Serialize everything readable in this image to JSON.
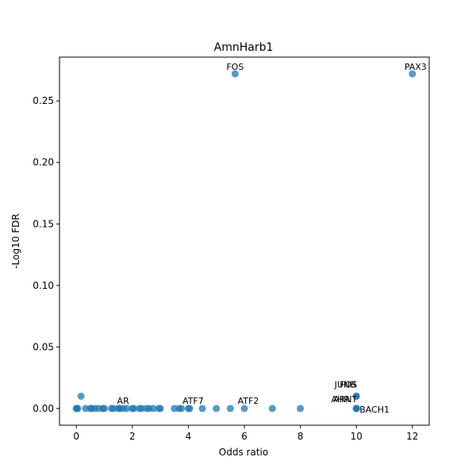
{
  "chart_data": {
    "type": "scatter",
    "title": "AmnHarb1",
    "xlabel": "Odds ratio",
    "ylabel": "-Log10 FDR",
    "xlim": [
      -0.6,
      12.6
    ],
    "ylim": [
      -0.0136,
      0.2856
    ],
    "xticks": [
      0,
      2,
      4,
      6,
      8,
      10,
      12
    ],
    "yticks": [
      0.0,
      0.05,
      0.1,
      0.15,
      0.2,
      0.25
    ],
    "ytick_labels": [
      "0.00",
      "0.05",
      "0.10",
      "0.15",
      "0.20",
      "0.25"
    ],
    "grid": false,
    "marker_color": "#1f77b4",
    "points": [
      {
        "x": 5.67,
        "y": 0.272,
        "label": "FOS"
      },
      {
        "x": 12.0,
        "y": 0.272,
        "label": "PAX3"
      },
      {
        "x": 0.17,
        "y": 0.01
      },
      {
        "x": 10.0,
        "y": 0.01,
        "label": "JUNB"
      },
      {
        "x": 10.0,
        "y": 0.01,
        "label": "FOS"
      },
      {
        "x": 10.0,
        "y": 0.0,
        "label": "AHR"
      },
      {
        "x": 10.0,
        "y": 0.0,
        "label": "ARNT"
      },
      {
        "x": 10.0,
        "y": 0.0,
        "label": "BACH1"
      },
      {
        "x": 1.67,
        "y": 0.0,
        "label": "AR"
      },
      {
        "x": 4.0,
        "y": 0.0,
        "label": "ATF7"
      },
      {
        "x": 6.0,
        "y": 0.0,
        "label": "ATF2"
      },
      {
        "x": 0.0,
        "y": 0.0
      },
      {
        "x": 0.02,
        "y": 0.0
      },
      {
        "x": 0.05,
        "y": 0.0
      },
      {
        "x": 0.33,
        "y": 0.0
      },
      {
        "x": 0.5,
        "y": 0.0
      },
      {
        "x": 0.55,
        "y": 0.0
      },
      {
        "x": 0.67,
        "y": 0.0
      },
      {
        "x": 0.8,
        "y": 0.0
      },
      {
        "x": 0.95,
        "y": 0.0
      },
      {
        "x": 1.0,
        "y": 0.0
      },
      {
        "x": 1.25,
        "y": 0.0
      },
      {
        "x": 1.33,
        "y": 0.0
      },
      {
        "x": 1.5,
        "y": 0.0
      },
      {
        "x": 1.55,
        "y": 0.0
      },
      {
        "x": 1.8,
        "y": 0.0
      },
      {
        "x": 2.0,
        "y": 0.0
      },
      {
        "x": 2.05,
        "y": 0.0
      },
      {
        "x": 2.25,
        "y": 0.0
      },
      {
        "x": 2.33,
        "y": 0.0
      },
      {
        "x": 2.5,
        "y": 0.0
      },
      {
        "x": 2.6,
        "y": 0.0
      },
      {
        "x": 2.75,
        "y": 0.0
      },
      {
        "x": 2.95,
        "y": 0.0
      },
      {
        "x": 3.0,
        "y": 0.0
      },
      {
        "x": 3.5,
        "y": 0.0
      },
      {
        "x": 3.67,
        "y": 0.0
      },
      {
        "x": 3.75,
        "y": 0.0
      },
      {
        "x": 4.05,
        "y": 0.0
      },
      {
        "x": 4.5,
        "y": 0.0
      },
      {
        "x": 5.0,
        "y": 0.0
      },
      {
        "x": 5.5,
        "y": 0.0
      },
      {
        "x": 7.0,
        "y": 0.0
      },
      {
        "x": 8.0,
        "y": 0.0
      }
    ]
  }
}
